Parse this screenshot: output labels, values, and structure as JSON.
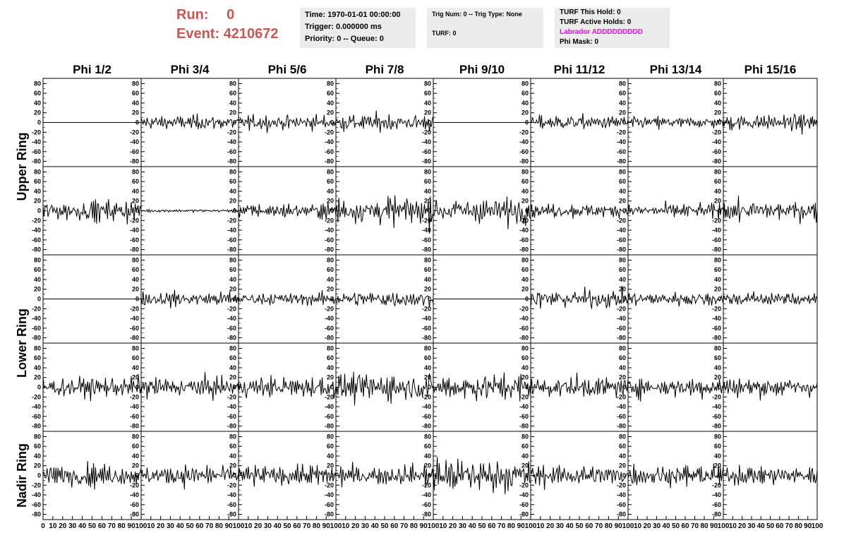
{
  "header": {
    "run_label": "Run:",
    "run_value": "0",
    "event_label": "Event:",
    "event_value": "4210672",
    "run_color": "#cf5451"
  },
  "info_time": {
    "time": "Time: 1970-01-01 00:00:00",
    "trigger": "Trigger: 0.000000 ms",
    "priority": "Priority: 0 -- Queue: 0"
  },
  "info_trig": {
    "trig": "Trig Num: 0 -- Trig Type: None",
    "turf": "TURF: 0"
  },
  "info_turf": {
    "this_hold": "TURF This Hold: 0",
    "active_holds": "TURF Active Holds: 0",
    "labrador": "Labrador ADDDDDDDDD",
    "phi_mask": "Phi Mask: 0"
  },
  "chart_data": {
    "type": "line",
    "columns": [
      "Phi 1/2",
      "Phi 3/4",
      "Phi 5/6",
      "Phi 7/8",
      "Phi 9/10",
      "Phi 11/12",
      "Phi 13/14",
      "Phi 15/16"
    ],
    "ring_groups": [
      "Upper Ring",
      "Lower Ring",
      "Nadir Ring"
    ],
    "rows_per_group": [
      2,
      2,
      1
    ],
    "xlim": [
      0,
      100
    ],
    "ylim": [
      -85,
      85
    ],
    "y_ticks": [
      "80",
      "60",
      "40",
      "20",
      "0",
      "-20",
      "-40",
      "-60",
      "-80"
    ],
    "x_ticks_first": [
      "0",
      "10",
      "20",
      "30",
      "40",
      "50",
      "60",
      "70",
      "80",
      "90",
      "100"
    ],
    "x_ticks_rest": [
      "10",
      "20",
      "30",
      "40",
      "50",
      "60",
      "70",
      "80",
      "90",
      "100"
    ],
    "samples_per_trace": 100,
    "trace_amplitude_rms": [
      [
        0,
        11,
        11,
        13,
        0,
        11,
        9,
        12
      ],
      [
        15,
        2,
        11,
        20,
        20,
        10,
        11,
        15
      ],
      [
        0,
        11,
        9,
        13,
        0,
        14,
        11,
        11
      ],
      [
        15,
        16,
        16,
        20,
        20,
        15,
        15,
        15
      ],
      [
        15,
        15,
        15,
        15,
        25,
        16,
        15,
        15
      ]
    ],
    "grid": false,
    "legend": "none"
  }
}
